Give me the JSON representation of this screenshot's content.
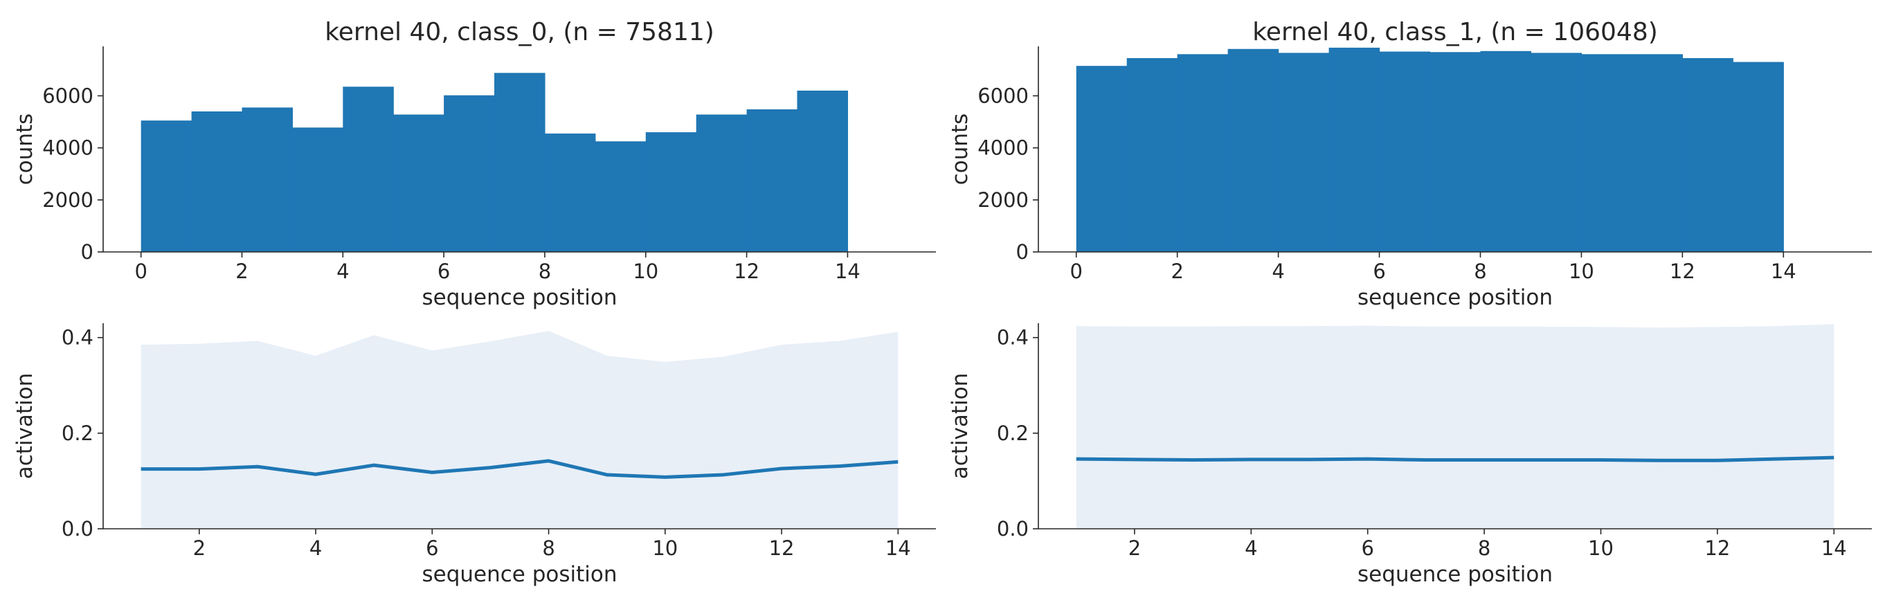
{
  "colors": {
    "bar": "#1f77b4",
    "line": "#1f77b4",
    "band": "#e8eff7",
    "axis": "#262626"
  },
  "chart_data": [
    {
      "id": "hist-class0",
      "type": "bar",
      "title": "kernel 40, class_0, (n = 75811)",
      "xlabel": "sequence position",
      "ylabel": "counts",
      "bin_edges": [
        0,
        1,
        2,
        3,
        4,
        5,
        6,
        7,
        8,
        9,
        10,
        11,
        12,
        13,
        14
      ],
      "values": [
        5050,
        5400,
        5550,
        4780,
        6350,
        5280,
        6020,
        6880,
        4550,
        4250,
        4600,
        5280,
        5480,
        6200
      ],
      "xlim": [
        -0.75,
        15.75
      ],
      "ylim": [
        0,
        7900
      ],
      "xticks": [
        "0",
        "2",
        "4",
        "6",
        "8",
        "10",
        "12",
        "14"
      ],
      "yticks": [
        "0",
        "2000",
        "4000",
        "6000"
      ],
      "grid": false
    },
    {
      "id": "hist-class1",
      "type": "bar",
      "title": "kernel 40, class_1, (n = 106048)",
      "xlabel": "sequence position",
      "ylabel": "counts",
      "bin_edges": [
        0,
        1,
        2,
        3,
        4,
        5,
        6,
        7,
        8,
        9,
        10,
        11,
        12,
        13,
        14
      ],
      "values": [
        7150,
        7450,
        7600,
        7800,
        7650,
        7850,
        7700,
        7680,
        7720,
        7650,
        7600,
        7600,
        7450,
        7300
      ],
      "xlim": [
        -0.75,
        15.75
      ],
      "ylim": [
        0,
        7900
      ],
      "xticks": [
        "0",
        "2",
        "4",
        "6",
        "8",
        "10",
        "12",
        "14"
      ],
      "yticks": [
        "0",
        "2000",
        "4000",
        "6000"
      ],
      "grid": false
    },
    {
      "id": "act-class0",
      "type": "area",
      "title": "",
      "xlabel": "sequence position",
      "ylabel": "activation",
      "x": [
        1,
        2,
        3,
        4,
        5,
        6,
        7,
        8,
        9,
        10,
        11,
        12,
        13,
        14
      ],
      "mean": [
        0.125,
        0.125,
        0.13,
        0.114,
        0.133,
        0.118,
        0.128,
        0.142,
        0.113,
        0.108,
        0.113,
        0.126,
        0.131,
        0.14
      ],
      "upper": [
        0.385,
        0.387,
        0.393,
        0.362,
        0.405,
        0.373,
        0.392,
        0.414,
        0.362,
        0.349,
        0.36,
        0.385,
        0.393,
        0.412
      ],
      "lower": [
        0,
        0,
        0,
        0,
        0,
        0,
        0,
        0,
        0,
        0,
        0,
        0,
        0,
        0
      ],
      "xlim": [
        0.35,
        14.65
      ],
      "ylim": [
        0,
        0.43
      ],
      "xticks": [
        "2",
        "4",
        "6",
        "8",
        "10",
        "12",
        "14"
      ],
      "yticks": [
        "0.0",
        "0.2",
        "0.4"
      ],
      "grid": false
    },
    {
      "id": "act-class1",
      "type": "area",
      "title": "",
      "xlabel": "sequence position",
      "ylabel": "activation",
      "x": [
        1,
        2,
        3,
        4,
        5,
        6,
        7,
        8,
        9,
        10,
        11,
        12,
        13,
        14
      ],
      "mean": [
        0.146,
        0.145,
        0.144,
        0.145,
        0.145,
        0.146,
        0.144,
        0.144,
        0.144,
        0.144,
        0.143,
        0.143,
        0.146,
        0.149
      ],
      "upper": [
        0.424,
        0.423,
        0.423,
        0.424,
        0.424,
        0.425,
        0.423,
        0.423,
        0.423,
        0.422,
        0.421,
        0.422,
        0.424,
        0.428
      ],
      "lower": [
        0,
        0,
        0,
        0,
        0,
        0,
        0,
        0,
        0,
        0,
        0,
        0,
        0,
        0
      ],
      "xlim": [
        0.35,
        14.65
      ],
      "ylim": [
        0,
        0.43
      ],
      "xticks": [
        "2",
        "4",
        "6",
        "8",
        "10",
        "12",
        "14"
      ],
      "yticks": [
        "0.0",
        "0.2",
        "0.4"
      ],
      "grid": false
    }
  ]
}
